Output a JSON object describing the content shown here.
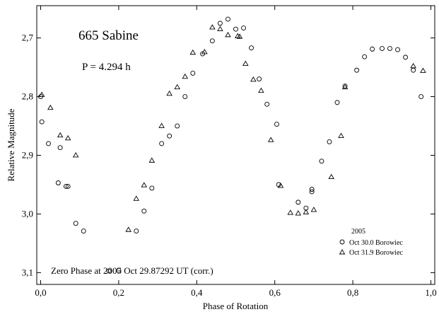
{
  "chart_data": {
    "type": "scatter",
    "title": "665 Sabine",
    "subtitle": "P = 4.294 h",
    "annotation": "Zero Phase at 2005 Oct 29.87292 UT (corr.)",
    "xlabel": "Phase of Rotation",
    "ylabel": "Relative Magnitude",
    "xlim": [
      -0.01,
      1.01
    ],
    "ylim": [
      3.12,
      2.645
    ],
    "y_inverted": true,
    "grid": false,
    "x_ticks": [
      0.0,
      0.2,
      0.4,
      0.6,
      0.8,
      1.0
    ],
    "x_tick_labels": [
      "0,0",
      "0,2",
      "0,4",
      "0,6",
      "0,8",
      "1,0"
    ],
    "y_ticks": [
      2.7,
      2.8,
      2.9,
      3.0,
      3.1
    ],
    "y_tick_labels": [
      "2,7",
      "2,8",
      "2,9",
      "3,0",
      "3,1"
    ],
    "legend": {
      "title": "2005",
      "position": "bottom-right",
      "entries": [
        "Oct 30.0 Borowiec",
        "Oct 31.9 Borowiec"
      ]
    },
    "series": [
      {
        "name": "Oct 30.0 Borowiec",
        "marker": "circle",
        "x": [
          0.0,
          0.003,
          0.02,
          0.045,
          0.05,
          0.065,
          0.07,
          0.09,
          0.11,
          0.175,
          0.2,
          0.245,
          0.265,
          0.285,
          0.31,
          0.33,
          0.35,
          0.37,
          0.39,
          0.415,
          0.44,
          0.46,
          0.48,
          0.5,
          0.52,
          0.54,
          0.56,
          0.58,
          0.605,
          0.61,
          0.66,
          0.68,
          0.695,
          0.695,
          0.72,
          0.74,
          0.76,
          0.78,
          0.81,
          0.83,
          0.85,
          0.875,
          0.895,
          0.915,
          0.935,
          0.955,
          0.975
        ],
        "y": [
          2.8,
          2.843,
          2.88,
          2.947,
          2.887,
          2.953,
          2.953,
          3.016,
          3.029,
          3.097,
          3.096,
          3.029,
          2.995,
          2.956,
          2.88,
          2.867,
          2.85,
          2.8,
          2.76,
          2.727,
          2.705,
          2.675,
          2.668,
          2.685,
          2.683,
          2.717,
          2.77,
          2.813,
          2.847,
          2.95,
          2.98,
          2.99,
          2.962,
          2.958,
          2.91,
          2.877,
          2.81,
          2.782,
          2.755,
          2.732,
          2.719,
          2.718,
          2.718,
          2.72,
          2.733,
          2.755,
          2.8
        ]
      },
      {
        "name": "Oct 31.9 Borowiec",
        "marker": "triangle",
        "x": [
          0.003,
          0.025,
          0.05,
          0.07,
          0.09,
          0.225,
          0.245,
          0.265,
          0.285,
          0.31,
          0.33,
          0.35,
          0.37,
          0.39,
          0.42,
          0.44,
          0.46,
          0.48,
          0.505,
          0.51,
          0.525,
          0.545,
          0.565,
          0.59,
          0.615,
          0.64,
          0.66,
          0.68,
          0.7,
          0.745,
          0.77,
          0.78,
          0.955,
          0.98
        ],
        "y": [
          2.797,
          2.819,
          2.866,
          2.871,
          2.9,
          3.027,
          2.974,
          2.951,
          2.909,
          2.85,
          2.795,
          2.784,
          2.766,
          2.725,
          2.724,
          2.682,
          2.685,
          2.695,
          2.697,
          2.698,
          2.744,
          2.771,
          2.79,
          2.874,
          2.952,
          2.998,
          2.999,
          2.997,
          2.993,
          2.937,
          2.867,
          2.784,
          2.748,
          2.756
        ]
      }
    ]
  }
}
